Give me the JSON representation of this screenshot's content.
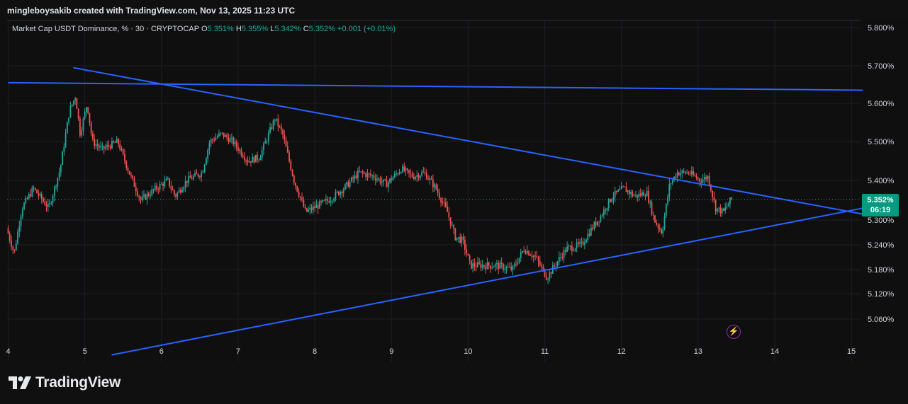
{
  "header": {
    "credit": "mingleboysakib created with TradingView.com, Nov 13, 2025 11:23 UTC"
  },
  "legend": {
    "title": "Market Cap USDT Dominance, % · 30 · CRYPTOCAP",
    "o_label": "O",
    "o_value": "5.351%",
    "h_label": "H",
    "h_value": "5.355%",
    "l_label": "L",
    "l_value": "5.342%",
    "c_label": "C",
    "c_value": "5.352%",
    "change": "+0.001 (+0.01%)"
  },
  "price_tag": {
    "price": "5.352%",
    "countdown": "06:19"
  },
  "footer": {
    "brand": "TradingView"
  },
  "colors": {
    "up": "#26a69a",
    "down": "#ef5350",
    "trendline": "#2962ff",
    "background": "#0f0f0f",
    "price_tag": "#089981"
  },
  "chart_data": {
    "type": "candlestick",
    "title": "Market Cap USDT Dominance, % · 30 · CRYPTOCAP",
    "xlabel": "",
    "ylabel": "",
    "y_axis_side": "right",
    "y_ticks": [
      "5.800%",
      "5.700%",
      "5.600%",
      "5.500%",
      "5.400%",
      "5.300%",
      "5.240%",
      "5.180%",
      "5.120%",
      "5.060%"
    ],
    "x_ticks": [
      "4",
      "5",
      "6",
      "7",
      "8",
      "9",
      "10",
      "11",
      "12",
      "13",
      "14",
      "15"
    ],
    "last_price": 5.352,
    "price_path": [
      [
        4.0,
        5.28
      ],
      [
        4.1,
        5.22
      ],
      [
        4.2,
        5.33
      ],
      [
        4.35,
        5.38
      ],
      [
        4.55,
        5.33
      ],
      [
        4.7,
        5.43
      ],
      [
        4.82,
        5.58
      ],
      [
        4.9,
        5.62
      ],
      [
        4.96,
        5.52
      ],
      [
        5.05,
        5.6
      ],
      [
        5.12,
        5.5
      ],
      [
        5.25,
        5.48
      ],
      [
        5.45,
        5.5
      ],
      [
        5.6,
        5.42
      ],
      [
        5.75,
        5.35
      ],
      [
        5.95,
        5.38
      ],
      [
        6.1,
        5.4
      ],
      [
        6.2,
        5.36
      ],
      [
        6.35,
        5.4
      ],
      [
        6.55,
        5.42
      ],
      [
        6.65,
        5.5
      ],
      [
        6.8,
        5.52
      ],
      [
        6.95,
        5.5
      ],
      [
        7.15,
        5.45
      ],
      [
        7.3,
        5.46
      ],
      [
        7.5,
        5.56
      ],
      [
        7.6,
        5.52
      ],
      [
        7.75,
        5.4
      ],
      [
        7.9,
        5.32
      ],
      [
        8.0,
        5.33
      ],
      [
        8.2,
        5.35
      ],
      [
        8.4,
        5.38
      ],
      [
        8.6,
        5.42
      ],
      [
        8.8,
        5.41
      ],
      [
        8.95,
        5.39
      ],
      [
        9.15,
        5.43
      ],
      [
        9.3,
        5.41
      ],
      [
        9.45,
        5.42
      ],
      [
        9.6,
        5.38
      ],
      [
        9.75,
        5.32
      ],
      [
        9.85,
        5.26
      ],
      [
        9.95,
        5.25
      ],
      [
        10.05,
        5.19
      ],
      [
        10.2,
        5.19
      ],
      [
        10.4,
        5.19
      ],
      [
        10.6,
        5.18
      ],
      [
        10.75,
        5.23
      ],
      [
        10.9,
        5.21
      ],
      [
        11.05,
        5.16
      ],
      [
        11.15,
        5.19
      ],
      [
        11.3,
        5.23
      ],
      [
        11.5,
        5.24
      ],
      [
        11.6,
        5.27
      ],
      [
        11.75,
        5.31
      ],
      [
        11.9,
        5.36
      ],
      [
        12.05,
        5.38
      ],
      [
        12.2,
        5.36
      ],
      [
        12.35,
        5.37
      ],
      [
        12.45,
        5.3
      ],
      [
        12.55,
        5.27
      ],
      [
        12.65,
        5.39
      ],
      [
        12.75,
        5.42
      ],
      [
        12.9,
        5.42
      ],
      [
        13.05,
        5.4
      ],
      [
        13.15,
        5.41
      ],
      [
        13.25,
        5.33
      ],
      [
        13.35,
        5.32
      ],
      [
        13.45,
        5.352
      ]
    ],
    "trendlines": [
      {
        "x1": 4.0,
        "y1": 5.655,
        "x2": 15.15,
        "y2": 5.635
      },
      {
        "x1": 4.85,
        "y1": 5.695,
        "x2": 15.15,
        "y2": 5.315
      },
      {
        "x1": 5.35,
        "y1": 4.975,
        "x2": 15.15,
        "y2": 5.33
      }
    ]
  }
}
